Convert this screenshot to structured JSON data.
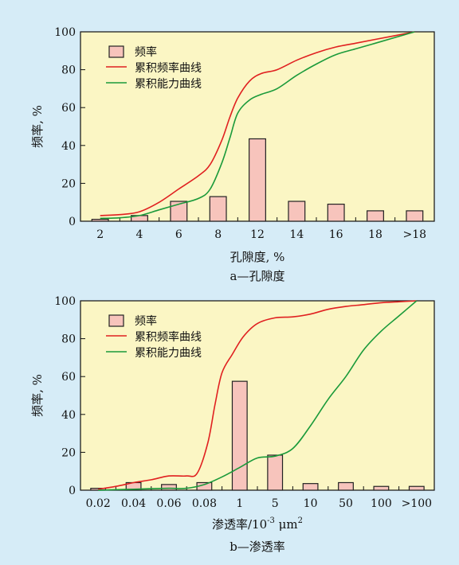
{
  "chart_data": [
    {
      "type": "bar",
      "caption": "a—孔隙度",
      "xlabel": "孔隙度, %",
      "ylabel": "频率, %",
      "ylim": [
        0,
        100
      ],
      "yticks": [
        "0",
        "20",
        "40",
        "60",
        "80",
        "100"
      ],
      "categories": [
        "2",
        "4",
        "6",
        "8",
        "12",
        "14",
        "16",
        "18",
        ">18"
      ],
      "legend": [
        "频率",
        "累积频率曲线",
        "累积能力曲线"
      ],
      "legend_position": "top-left",
      "series": [
        {
          "name": "频率",
          "type": "bar",
          "color": "#f7c4bc",
          "values": [
            1,
            3,
            10.5,
            13,
            43.5,
            10.5,
            9,
            5.5,
            5.5
          ]
        },
        {
          "name": "累积频率曲线",
          "type": "line",
          "color": "#e02020",
          "points": [
            [
              0.5,
              3
            ],
            [
              1,
              3.5
            ],
            [
              1.5,
              5
            ],
            [
              2,
              10
            ],
            [
              2.5,
              17
            ],
            [
              3,
              24
            ],
            [
              3.3,
              30
            ],
            [
              3.6,
              43
            ],
            [
              3.8,
              55
            ],
            [
              4,
              65
            ],
            [
              4.3,
              74
            ],
            [
              4.6,
              78
            ],
            [
              5,
              80
            ],
            [
              5.5,
              85
            ],
            [
              6,
              89
            ],
            [
              6.5,
              92
            ],
            [
              7,
              94
            ],
            [
              7.5,
              96
            ],
            [
              8,
              98
            ],
            [
              8.5,
              100
            ]
          ]
        },
        {
          "name": "累积能力曲线",
          "type": "line",
          "color": "#1a9a3a",
          "points": [
            [
              0.5,
              1.5
            ],
            [
              1,
              1.8
            ],
            [
              1.5,
              3
            ],
            [
              2,
              6
            ],
            [
              2.5,
              9
            ],
            [
              3,
              12
            ],
            [
              3.3,
              17
            ],
            [
              3.6,
              31
            ],
            [
              3.8,
              44
            ],
            [
              4,
              57
            ],
            [
              4.3,
              64
            ],
            [
              4.6,
              67
            ],
            [
              5,
              70
            ],
            [
              5.5,
              77
            ],
            [
              6,
              83
            ],
            [
              6.5,
              88
            ],
            [
              7,
              91
            ],
            [
              7.5,
              94
            ],
            [
              8,
              97
            ],
            [
              8.5,
              100
            ]
          ]
        }
      ]
    },
    {
      "type": "bar",
      "caption": "b—渗透率",
      "xlabel_main": "渗透率/10",
      "xlabel_exp": "-3",
      "xlabel_unit": " μm",
      "xlabel_unit_exp": "2",
      "ylabel": "频率, %",
      "ylim": [
        0,
        100
      ],
      "yticks": [
        "0",
        "20",
        "40",
        "60",
        "80",
        "100"
      ],
      "categories": [
        "0.02",
        "0.04",
        "0.06",
        "0.08",
        "1",
        "5",
        "10",
        "50",
        "100",
        ">100"
      ],
      "legend": [
        "频率",
        "累积频率曲线",
        "累积能力曲线"
      ],
      "legend_position": "top-left",
      "series": [
        {
          "name": "频率",
          "type": "bar",
          "color": "#f7c4bc",
          "values": [
            1,
            4,
            3,
            4,
            57.5,
            18.5,
            3.5,
            4,
            2,
            2
          ]
        },
        {
          "name": "累积频率曲线",
          "type": "line",
          "color": "#e02020",
          "points": [
            [
              0.5,
              0.5
            ],
            [
              1,
              2
            ],
            [
              1.5,
              4
            ],
            [
              2,
              5.5
            ],
            [
              2.5,
              7.5
            ],
            [
              3,
              7.5
            ],
            [
              3.3,
              9
            ],
            [
              3.6,
              25
            ],
            [
              3.8,
              45
            ],
            [
              4,
              62
            ],
            [
              4.3,
              72
            ],
            [
              4.6,
              81
            ],
            [
              5,
              88
            ],
            [
              5.5,
              91
            ],
            [
              6,
              91.5
            ],
            [
              6.5,
              93
            ],
            [
              7,
              95.5
            ],
            [
              7.5,
              97
            ],
            [
              8,
              98
            ],
            [
              8.5,
              99
            ],
            [
              9,
              99.5
            ],
            [
              9.5,
              100
            ]
          ]
        },
        {
          "name": "累积能力曲线",
          "type": "line",
          "color": "#1a9a3a",
          "points": [
            [
              0.5,
              0
            ],
            [
              1,
              0.3
            ],
            [
              1.5,
              0.5
            ],
            [
              2,
              0.8
            ],
            [
              2.5,
              1
            ],
            [
              3,
              1
            ],
            [
              3.5,
              3
            ],
            [
              4,
              7
            ],
            [
              4.5,
              12
            ],
            [
              5,
              17
            ],
            [
              5.5,
              18
            ],
            [
              6,
              22
            ],
            [
              6.5,
              34
            ],
            [
              7,
              48
            ],
            [
              7.5,
              60
            ],
            [
              8,
              74
            ],
            [
              8.5,
              84
            ],
            [
              9,
              92
            ],
            [
              9.5,
              100
            ]
          ]
        }
      ]
    }
  ],
  "colors": {
    "background": "#d6ecf7",
    "plot_area": "#fbf6c4",
    "bar": "#f7c4bc",
    "bar_edge": "#222222",
    "line_red": "#e02020",
    "line_green": "#1a9a3a"
  }
}
